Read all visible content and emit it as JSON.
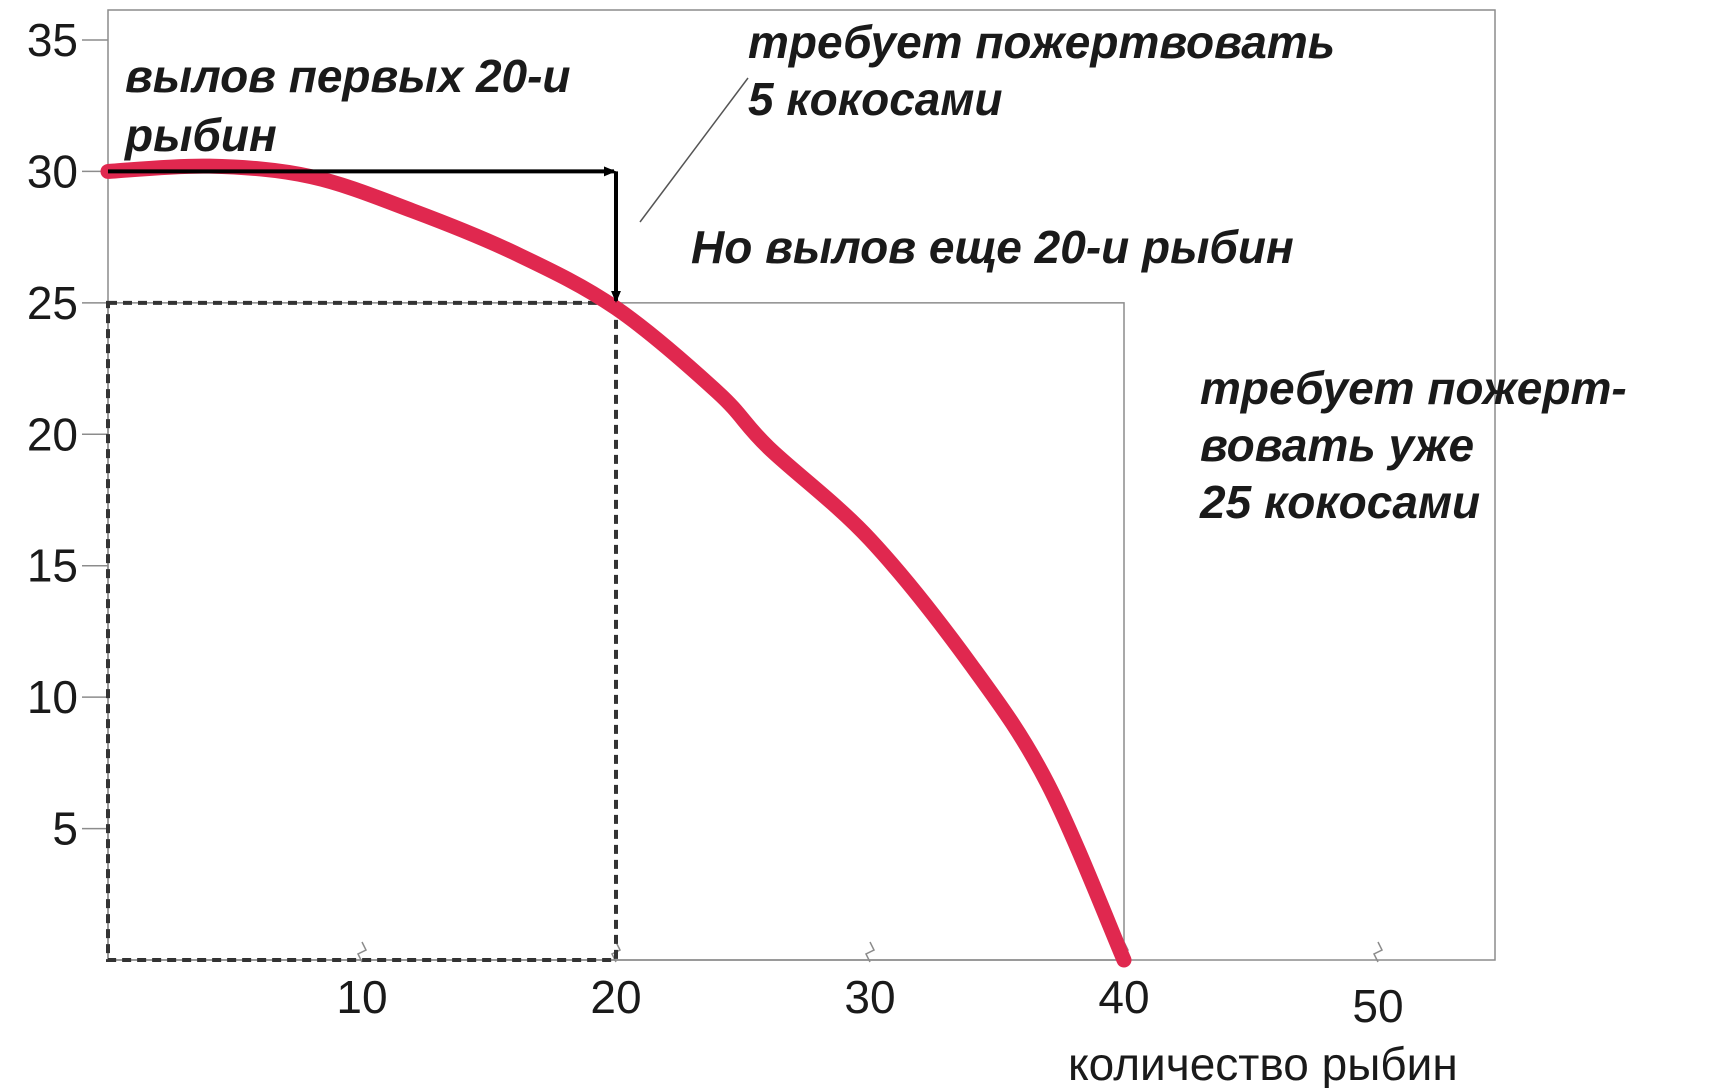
{
  "chart_data": {
    "type": "line",
    "title": "",
    "xlabel": "количество рыбин",
    "ylabel": "",
    "xlim": [
      0,
      53
    ],
    "ylim": [
      0,
      35
    ],
    "x_ticks": [
      10,
      20,
      30,
      40,
      50
    ],
    "y_ticks": [
      5,
      10,
      15,
      20,
      25,
      30,
      35
    ],
    "grid": false,
    "series": [
      {
        "name": "",
        "color": "#e0284f",
        "x": [
          0,
          4,
          8,
          12,
          16,
          20,
          24,
          26,
          30,
          34,
          37,
          40
        ],
        "y": [
          30,
          30.2,
          29.8,
          28.5,
          26.9,
          24.8,
          21.6,
          19.5,
          16,
          11.2,
          6.7,
          0
        ]
      }
    ],
    "reference_lines": {
      "dashed_box": {
        "x": 20,
        "y": 25
      },
      "thin_box": {
        "x": 40,
        "y": 25
      },
      "arrow_horizontal": {
        "from": [
          0,
          30
        ],
        "to": [
          20,
          30
        ]
      },
      "arrow_vertical": {
        "from": [
          20,
          30
        ],
        "to": [
          20,
          25
        ]
      }
    },
    "annotations": [
      {
        "lines": [
          "вылов первых 20-и",
          "рыбин"
        ]
      },
      {
        "lines": [
          "требует пожертвовать",
          "5 кокосами"
        ]
      },
      {
        "lines": [
          "Но вылов еще 20-и рыбин"
        ]
      },
      {
        "lines": [
          "требует пожерт-",
          "вовать уже",
          "25 кокосами"
        ]
      }
    ]
  }
}
